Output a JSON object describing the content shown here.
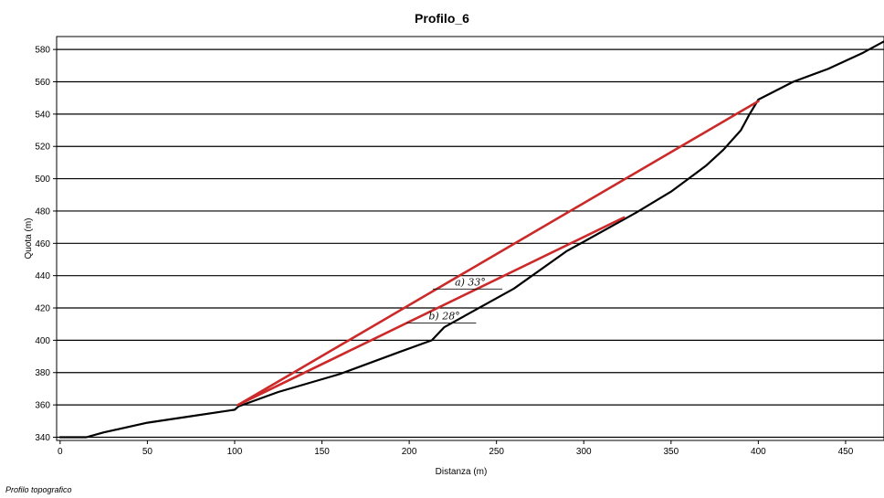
{
  "chart_data": {
    "type": "line",
    "title": "Profilo_6",
    "xlabel": "Distanza (m)",
    "ylabel": "Quota (m)",
    "xlim": [
      -2,
      472
    ],
    "ylim": [
      338,
      588
    ],
    "xticks": [
      0,
      50,
      100,
      150,
      200,
      250,
      300,
      350,
      400,
      450
    ],
    "yticks": [
      340,
      360,
      380,
      400,
      420,
      440,
      460,
      480,
      500,
      520,
      540,
      560,
      580
    ],
    "grid": "horizontal",
    "series": [
      {
        "color": "#000000",
        "x": [
          0,
          15,
          25,
          50,
          75,
          100,
          102,
          125,
          160,
          195,
          213,
          220,
          260,
          290,
          330,
          350,
          360,
          370,
          380,
          390,
          395,
          400,
          420,
          440,
          460,
          472
        ],
        "y": [
          340,
          340,
          343,
          349,
          353,
          357,
          359,
          368,
          379,
          393,
          400,
          408,
          432,
          455,
          479,
          492,
          500,
          508,
          518,
          530,
          540,
          549,
          560,
          568,
          578,
          585
        ]
      },
      {
        "color": "#cc2a2a",
        "x": [
          102,
          400
        ],
        "y": [
          360,
          548
        ]
      },
      {
        "color": "#cc2a2a",
        "x": [
          102,
          323
        ],
        "y": [
          360,
          476
        ]
      }
    ],
    "annotations": [
      {
        "text": "a) 33°",
        "x": 223,
        "y": 434
      },
      {
        "text": "b) 28°",
        "x": 208,
        "y": 413
      }
    ]
  },
  "footer": "Profilo topografico"
}
